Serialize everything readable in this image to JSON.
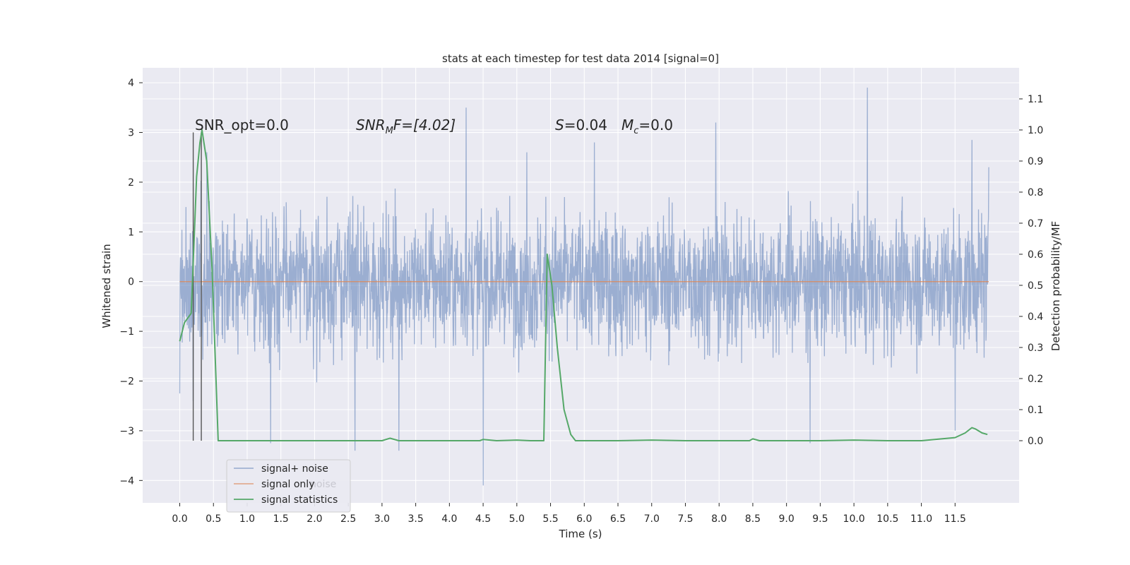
{
  "chart_data": {
    "type": "line",
    "title": "stats at each timestep for test data 2014 [signal=0]",
    "xlabel": "Time (s)",
    "ylabel_left": "Whitened strain",
    "ylabel_right": "Detection probability/MF",
    "xlim": [
      -0.55,
      12.45
    ],
    "ylim_left": [
      -4.45,
      4.3
    ],
    "ylim_right": [
      -0.2,
      1.2
    ],
    "x_ticks": [
      "0.0",
      "0.5",
      "1.0",
      "1.5",
      "2.0",
      "2.5",
      "3.0",
      "3.5",
      "4.0",
      "4.5",
      "5.0",
      "5.5",
      "6.0",
      "6.5",
      "7.0",
      "7.5",
      "8.0",
      "8.5",
      "9.0",
      "9.5",
      "10.0",
      "10.5",
      "11.0",
      "11.5"
    ],
    "y_ticks_left": [
      "−4",
      "−3",
      "−2",
      "−1",
      "0",
      "1",
      "2",
      "3",
      "4"
    ],
    "y_ticks_right": [
      "0.0",
      "0.1",
      "0.2",
      "0.3",
      "0.4",
      "0.5",
      "0.6",
      "0.7",
      "0.8",
      "0.9",
      "1.0",
      "1.1"
    ],
    "grid": true,
    "legend_position": "lower-left",
    "legend": [
      "signal+ noise",
      "signal only",
      "signal statistics"
    ],
    "legend_overlapped_text": "noise",
    "colors": {
      "signal_noise": "#4c72b0",
      "signal_only": "#dd8452",
      "signal_statistics": "#55a868",
      "background": "#eaeaf2",
      "grid": "#ffffff"
    },
    "annotations": {
      "snr_opt": "SNR_opt=0.0",
      "snr_mf_main": "SNR",
      "snr_mf_sub": "M",
      "snr_mf_rest": "F=[4.02]",
      "s_label": "S",
      "s_value": "=0.04",
      "mc_main": "M",
      "mc_sub": "c",
      "mc_value": "=0.0"
    },
    "vertical_lines_x": [
      0.2,
      0.32
    ],
    "series": [
      {
        "name": "signal+ noise",
        "axis": "left",
        "time_range": [
          0.0,
          12.0
        ],
        "envelope_typical": [
          -1.8,
          2.0
        ],
        "spikes": [
          [
            0.0,
            -2.25
          ],
          [
            0.2,
            -2.4
          ],
          [
            0.4,
            2.6
          ],
          [
            1.35,
            -3.25
          ],
          [
            2.6,
            -3.4
          ],
          [
            3.25,
            -3.4
          ],
          [
            4.25,
            3.5
          ],
          [
            4.5,
            -4.1
          ],
          [
            5.15,
            2.6
          ],
          [
            6.15,
            2.8
          ],
          [
            7.95,
            3.2
          ],
          [
            9.35,
            -3.25
          ],
          [
            10.2,
            3.9
          ],
          [
            11.75,
            2.85
          ],
          [
            11.5,
            -3.0
          ],
          [
            12.0,
            2.3
          ]
        ]
      },
      {
        "name": "signal only",
        "axis": "left",
        "x": [
          0.0,
          12.0
        ],
        "y": [
          0.0,
          0.0
        ]
      },
      {
        "name": "signal statistics",
        "axis": "right",
        "x": [
          0.0,
          0.07,
          0.17,
          0.25,
          0.3,
          0.33,
          0.4,
          0.48,
          0.57,
          0.7,
          1.5,
          2.5,
          3.0,
          3.12,
          3.25,
          4.0,
          4.45,
          4.5,
          4.7,
          5.0,
          5.2,
          5.4,
          5.45,
          5.52,
          5.6,
          5.7,
          5.8,
          5.87,
          6.0,
          6.5,
          7.0,
          7.5,
          8.0,
          8.45,
          8.5,
          8.6,
          9.0,
          9.5,
          10.0,
          10.5,
          11.0,
          11.5,
          11.65,
          11.75,
          11.8,
          11.9,
          11.98
        ],
        "y": [
          0.32,
          0.38,
          0.41,
          0.85,
          0.96,
          1.0,
          0.9,
          0.55,
          0.0,
          0.0,
          0.0,
          0.0,
          0.0,
          0.008,
          0.0,
          0.0,
          0.0,
          0.004,
          0.0,
          0.002,
          0.0,
          0.0,
          0.6,
          0.5,
          0.3,
          0.1,
          0.02,
          0.0,
          0.0,
          0.0,
          0.002,
          0.0,
          0.0,
          0.0,
          0.006,
          0.0,
          0.0,
          0.0,
          0.002,
          0.0,
          0.0,
          0.01,
          0.025,
          0.042,
          0.038,
          0.025,
          0.02
        ]
      }
    ]
  }
}
